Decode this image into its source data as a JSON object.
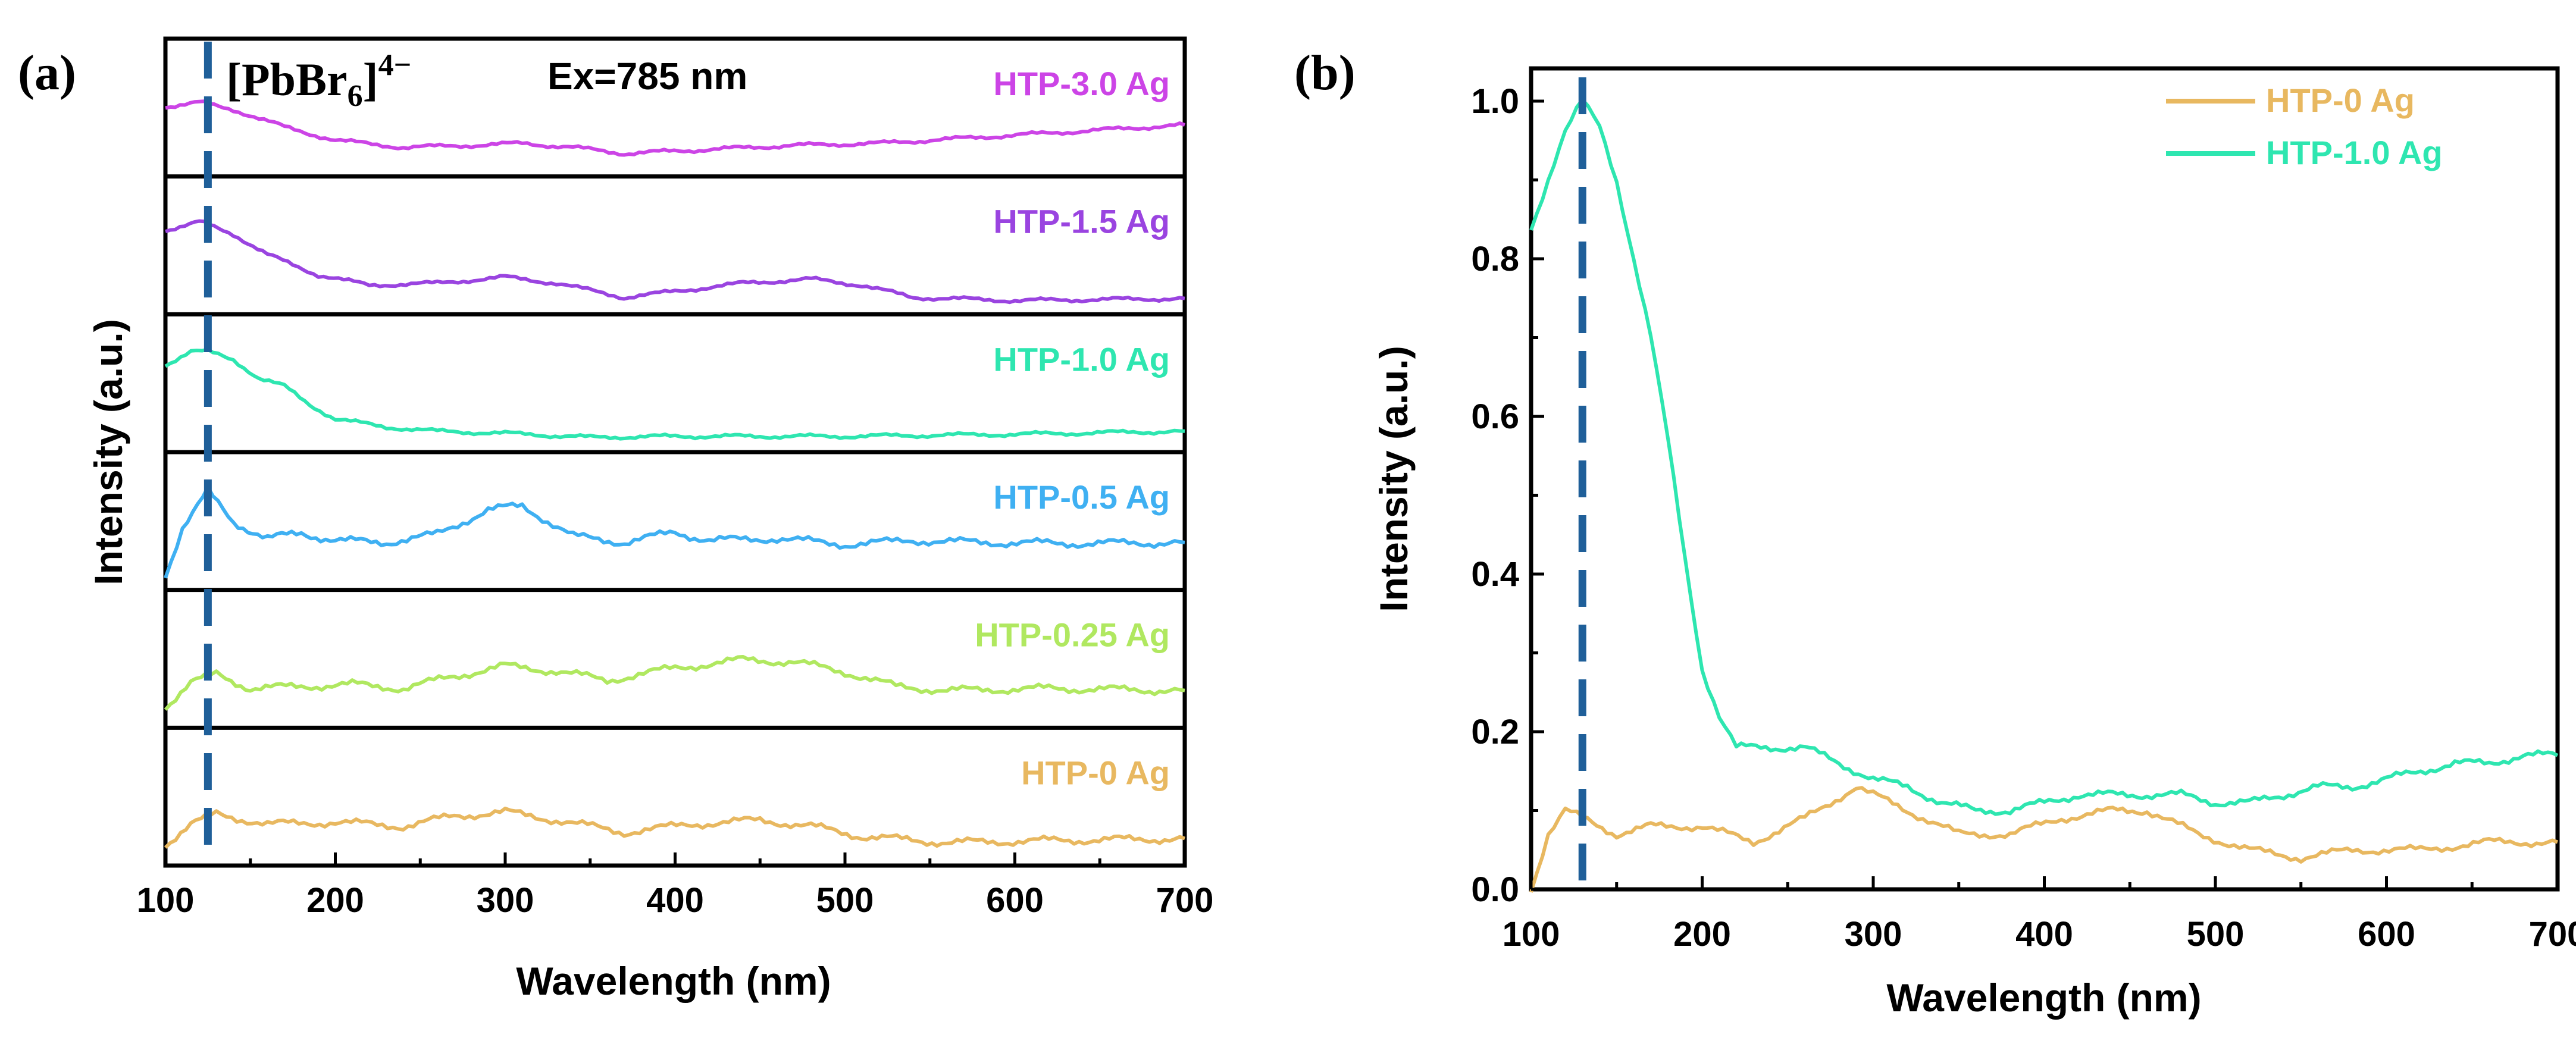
{
  "chart_data": [
    {
      "panel": "(a)",
      "type": "line",
      "layout": "stacked",
      "xlabel": "Wavelength (nm)",
      "ylabel": "Intensity (a.u.)",
      "xlim": [
        100,
        700
      ],
      "xticks": [
        "100",
        "200",
        "300",
        "400",
        "500",
        "600",
        "700"
      ],
      "annotation_species": "[PbBr6]4−",
      "annotation_species_parts": {
        "base": "[PbBr",
        "sub": "6",
        "close": "]",
        "sup": "4−"
      },
      "annotation_excitation": "Ex=785 nm",
      "marker_x": 125,
      "series": [
        {
          "name": "HTP-3.0 Ag",
          "color": "#cc44e6",
          "x": [
            100,
            120,
            140,
            170,
            200,
            240,
            280,
            310,
            340,
            370,
            420,
            470,
            520,
            580,
            640,
            700
          ],
          "values": [
            0.58,
            0.62,
            0.55,
            0.38,
            0.25,
            0.18,
            0.2,
            0.22,
            0.18,
            0.12,
            0.16,
            0.2,
            0.22,
            0.28,
            0.34,
            0.4
          ]
        },
        {
          "name": "HTP-1.5 Ag",
          "color": "#9a44e0",
          "x": [
            100,
            120,
            140,
            160,
            190,
            220,
            260,
            300,
            330,
            370,
            400,
            440,
            480,
            510,
            540,
            600,
            700
          ],
          "values": [
            0.72,
            0.8,
            0.68,
            0.48,
            0.28,
            0.18,
            0.2,
            0.26,
            0.2,
            0.06,
            0.12,
            0.2,
            0.24,
            0.18,
            0.06,
            0.03,
            0.05
          ]
        },
        {
          "name": "HTP-1.0 Ag",
          "color": "#2ee6b0",
          "x": [
            100,
            115,
            125,
            140,
            155,
            170,
            185,
            200,
            230,
            260,
            300,
            350,
            400,
            450,
            500,
            600,
            700
          ],
          "values": [
            0.75,
            0.88,
            0.88,
            0.8,
            0.62,
            0.54,
            0.36,
            0.22,
            0.14,
            0.1,
            0.08,
            0.04,
            0.05,
            0.05,
            0.05,
            0.07,
            0.1
          ]
        },
        {
          "name": "HTP-0.5 Ag",
          "color": "#3fb0f2",
          "x": [
            100,
            110,
            125,
            140,
            160,
            180,
            200,
            230,
            260,
            290,
            310,
            340,
            370,
            400,
            420,
            460,
            500,
            540,
            580,
            640,
            700
          ],
          "values": [
            0.04,
            0.5,
            0.86,
            0.56,
            0.4,
            0.45,
            0.38,
            0.36,
            0.44,
            0.68,
            0.72,
            0.42,
            0.36,
            0.46,
            0.38,
            0.4,
            0.34,
            0.38,
            0.36,
            0.35,
            0.36
          ]
        },
        {
          "name": "HTP-0.25 Ag",
          "color": "#b0e860",
          "x": [
            100,
            115,
            130,
            150,
            180,
            210,
            240,
            270,
            300,
            330,
            360,
            400,
            440,
            470,
            500,
            530,
            560,
            620,
            700
          ],
          "values": [
            0.1,
            0.34,
            0.42,
            0.28,
            0.3,
            0.32,
            0.28,
            0.4,
            0.5,
            0.45,
            0.36,
            0.48,
            0.56,
            0.54,
            0.44,
            0.3,
            0.26,
            0.28,
            0.26
          ]
        },
        {
          "name": "HTP-0 Ag",
          "color": "#e8b860",
          "x": [
            100,
            115,
            130,
            160,
            200,
            240,
            270,
            300,
            330,
            370,
            410,
            450,
            480,
            510,
            560,
            620,
            700
          ],
          "values": [
            0.1,
            0.3,
            0.4,
            0.3,
            0.32,
            0.28,
            0.38,
            0.42,
            0.34,
            0.22,
            0.3,
            0.34,
            0.28,
            0.18,
            0.12,
            0.14,
            0.16
          ]
        }
      ]
    },
    {
      "panel": "(b)",
      "type": "line",
      "xlabel": "Wavelength (nm)",
      "ylabel": "Intensity (a.u.)",
      "xlim": [
        100,
        700
      ],
      "ylim": [
        0.0,
        1.05
      ],
      "xticks": [
        "100",
        "200",
        "300",
        "400",
        "500",
        "600",
        "700"
      ],
      "yticks": [
        "0.0",
        "0.2",
        "0.4",
        "0.6",
        "0.8",
        "1.0"
      ],
      "legend_position": "top-right",
      "marker_x": 130,
      "series": [
        {
          "name": "HTP-0 Ag",
          "color": "#e8b860",
          "x": [
            100,
            110,
            120,
            130,
            150,
            170,
            200,
            230,
            260,
            290,
            300,
            320,
            350,
            380,
            410,
            440,
            460,
            490,
            520,
            550,
            580,
            620,
            660,
            700
          ],
          "values": [
            0.0,
            0.07,
            0.1,
            0.09,
            0.07,
            0.08,
            0.08,
            0.06,
            0.09,
            0.13,
            0.12,
            0.1,
            0.07,
            0.07,
            0.09,
            0.1,
            0.1,
            0.07,
            0.05,
            0.04,
            0.05,
            0.05,
            0.06,
            0.06
          ]
        },
        {
          "name": "HTP-1.0 Ag",
          "color": "#2ee6b0",
          "x": [
            100,
            110,
            120,
            130,
            140,
            150,
            160,
            170,
            180,
            190,
            200,
            210,
            220,
            240,
            260,
            280,
            300,
            320,
            340,
            360,
            380,
            400,
            420,
            440,
            460,
            480,
            500,
            520,
            540,
            560,
            580,
            600,
            620,
            640,
            660,
            680,
            700
          ],
          "values": [
            0.84,
            0.9,
            0.96,
            1.0,
            0.97,
            0.9,
            0.8,
            0.7,
            0.57,
            0.42,
            0.28,
            0.22,
            0.18,
            0.18,
            0.18,
            0.16,
            0.14,
            0.13,
            0.11,
            0.1,
            0.1,
            0.11,
            0.12,
            0.12,
            0.12,
            0.12,
            0.11,
            0.11,
            0.12,
            0.13,
            0.13,
            0.14,
            0.15,
            0.16,
            0.16,
            0.17,
            0.17
          ]
        }
      ]
    }
  ]
}
